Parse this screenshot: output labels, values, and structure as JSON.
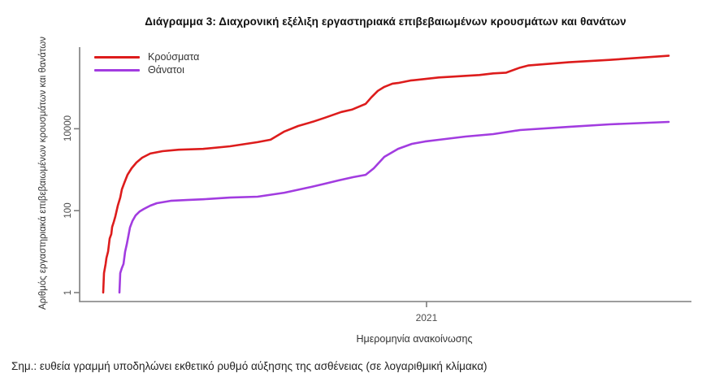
{
  "title": "Διάγραμμα 3: Διαχρονική εξέλιξη εργαστηριακά επιβεβαιωμένων κρουσμάτων και θανάτων",
  "note": "Σημ.: ευθεία γραμμή υποδηλώνει εκθετικό ρυθμό αύξησης της ασθένειας (σε λογαριθμική κλίμακα)",
  "chart_data": {
    "type": "line",
    "title": "Διάγραμμα 3: Διαχρονική εξέλιξη εργαστηριακά επιβεβαιωμένων κρουσμάτων και θανάτων",
    "xlabel": "Ημερομηνία ανακοίνωσης",
    "ylabel": "Αριθμός εργαστηριακά επιβεβαιωμένων κρουσμάτων και θανάτων",
    "y_scale": "log10",
    "ylim": [
      1,
      700000
    ],
    "y_ticks": [
      1,
      100,
      10000
    ],
    "x_ticks": [
      {
        "label": "2021",
        "pos": 0.567
      }
    ],
    "grid": false,
    "legend_position": "top-left",
    "axis_color": "#7d7d7d",
    "series": [
      {
        "name": "Κρούσματα",
        "color": "#dd1c1c",
        "points": [
          [
            0.0385,
            1
          ],
          [
            0.0398,
            3
          ],
          [
            0.0425,
            5
          ],
          [
            0.0438,
            7
          ],
          [
            0.0465,
            10
          ],
          [
            0.0491,
            21
          ],
          [
            0.0518,
            27
          ],
          [
            0.0531,
            40
          ],
          [
            0.0558,
            53
          ],
          [
            0.0584,
            73
          ],
          [
            0.0624,
            133
          ],
          [
            0.0664,
            210
          ],
          [
            0.069,
            331
          ],
          [
            0.073,
            478
          ],
          [
            0.0783,
            756
          ],
          [
            0.085,
            1086
          ],
          [
            0.093,
            1500
          ],
          [
            0.1023,
            1970
          ],
          [
            0.1155,
            2480
          ],
          [
            0.1354,
            2830
          ],
          [
            0.162,
            3080
          ],
          [
            0.2018,
            3225
          ],
          [
            0.2457,
            3730
          ],
          [
            0.2908,
            4700
          ],
          [
            0.3121,
            5400
          ],
          [
            0.3347,
            8570
          ],
          [
            0.3572,
            11700
          ],
          [
            0.3811,
            14800
          ],
          [
            0.4011,
            18600
          ],
          [
            0.4276,
            25600
          ],
          [
            0.4449,
            29300
          ],
          [
            0.4675,
            40400
          ],
          [
            0.4768,
            58300
          ],
          [
            0.4874,
            84000
          ],
          [
            0.498,
            105000
          ],
          [
            0.5113,
            126000
          ],
          [
            0.5206,
            131000
          ],
          [
            0.5405,
            150000
          ],
          [
            0.5644,
            164000
          ],
          [
            0.587,
            179000
          ],
          [
            0.6096,
            187000
          ],
          [
            0.6308,
            196000
          ],
          [
            0.6534,
            205000
          ],
          [
            0.676,
            224000
          ],
          [
            0.6972,
            234000
          ],
          [
            0.7198,
            310000
          ],
          [
            0.7331,
            350000
          ],
          [
            0.7995,
            420000
          ],
          [
            0.8659,
            480000
          ],
          [
            0.9628,
            604000
          ]
        ]
      },
      {
        "name": "Θάνατοι",
        "color": "#a23ce0",
        "points": [
          [
            0.0651,
            1
          ],
          [
            0.0664,
            3
          ],
          [
            0.069,
            4
          ],
          [
            0.0717,
            5
          ],
          [
            0.0744,
            10
          ],
          [
            0.077,
            15
          ],
          [
            0.0797,
            24
          ],
          [
            0.0823,
            39
          ],
          [
            0.0863,
            56
          ],
          [
            0.0916,
            77
          ],
          [
            0.0983,
            96
          ],
          [
            0.1049,
            110
          ],
          [
            0.1155,
            133
          ],
          [
            0.1262,
            152
          ],
          [
            0.1487,
            174
          ],
          [
            0.1753,
            182
          ],
          [
            0.2018,
            190
          ],
          [
            0.2457,
            209
          ],
          [
            0.2908,
            219
          ],
          [
            0.3347,
            275
          ],
          [
            0.3785,
            380
          ],
          [
            0.4011,
            456
          ],
          [
            0.4236,
            549
          ],
          [
            0.4475,
            660
          ],
          [
            0.4675,
            750
          ],
          [
            0.4808,
            1080
          ],
          [
            0.498,
            2060
          ],
          [
            0.5206,
            3240
          ],
          [
            0.5432,
            4270
          ],
          [
            0.5644,
            4880
          ],
          [
            0.587,
            5370
          ],
          [
            0.6308,
            6440
          ],
          [
            0.676,
            7410
          ],
          [
            0.7198,
            9280
          ],
          [
            0.7995,
            11100
          ],
          [
            0.8659,
            12800
          ],
          [
            0.9628,
            14700
          ]
        ]
      }
    ]
  }
}
